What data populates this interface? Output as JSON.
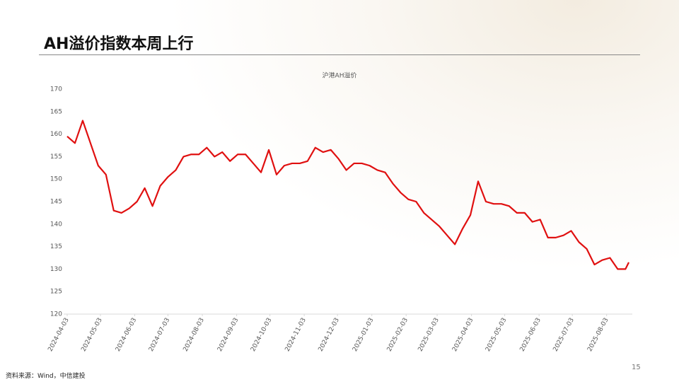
{
  "slide": {
    "title": "AH溢价指数本周上行",
    "source": "资料来源：Wind，中信建投",
    "page": "15"
  },
  "chart_data": {
    "type": "line",
    "title": "沪港AH溢价",
    "x": [
      "2024-04-03",
      "2024-04-10",
      "2024-04-17",
      "2024-04-24",
      "2024-05-01",
      "2024-05-08",
      "2024-05-15",
      "2024-05-22",
      "2024-05-29",
      "2024-06-05",
      "2024-06-12",
      "2024-06-19",
      "2024-06-26",
      "2024-07-03",
      "2024-07-10",
      "2024-07-17",
      "2024-07-24",
      "2024-07-31",
      "2024-08-07",
      "2024-08-14",
      "2024-08-21",
      "2024-08-28",
      "2024-09-04",
      "2024-09-11",
      "2024-09-18",
      "2024-09-25",
      "2024-10-02",
      "2024-10-09",
      "2024-10-16",
      "2024-10-23",
      "2024-10-30",
      "2024-11-06",
      "2024-11-13",
      "2024-11-20",
      "2024-11-27",
      "2024-12-04",
      "2024-12-11",
      "2024-12-18",
      "2024-12-25",
      "2025-01-01",
      "2025-01-08",
      "2025-01-15",
      "2025-01-22",
      "2025-01-29",
      "2025-02-05",
      "2025-02-12",
      "2025-02-19",
      "2025-02-26",
      "2025-03-05",
      "2025-03-12",
      "2025-03-19",
      "2025-03-26",
      "2025-04-02",
      "2025-04-09",
      "2025-04-16",
      "2025-04-23",
      "2025-04-30",
      "2025-05-07",
      "2025-05-14",
      "2025-05-21",
      "2025-05-28",
      "2025-06-04",
      "2025-06-11",
      "2025-06-18",
      "2025-06-25",
      "2025-07-02",
      "2025-07-09",
      "2025-07-16",
      "2025-07-23",
      "2025-07-30",
      "2025-08-06",
      "2025-08-13",
      "2025-08-20",
      "2025-08-23"
    ],
    "series": [
      {
        "name": "沪港AH溢价",
        "color": "#e01010",
        "values": [
          159.5,
          158,
          163,
          158,
          153,
          151,
          143,
          142.5,
          143.5,
          145,
          148,
          144,
          148.5,
          150.5,
          152,
          155,
          155.5,
          155.5,
          157,
          155,
          156,
          154,
          155.5,
          155.5,
          153.5,
          151.5,
          156.5,
          151,
          153,
          153.5,
          153.5,
          154,
          157,
          156,
          156.5,
          154.5,
          152,
          153.5,
          153.5,
          153,
          152,
          151.5,
          149,
          147,
          145.5,
          145,
          142.5,
          141,
          139.5,
          137.5,
          135.5,
          139,
          142,
          149.5,
          145,
          144.5,
          144.5,
          144,
          142.5,
          142.5,
          140.5,
          141,
          137,
          137,
          137.5,
          138.5,
          136,
          134.5,
          131,
          132,
          132.5,
          130,
          130,
          131.5
        ]
      }
    ],
    "xlim": [
      "2024-04-03",
      "2025-08-23"
    ],
    "xticks": [
      "2024-04-03",
      "2024-05-03",
      "2024-06-03",
      "2024-07-03",
      "2024-08-03",
      "2024-09-03",
      "2024-10-03",
      "2024-11-03",
      "2024-12-03",
      "2025-01-03",
      "2025-02-03",
      "2025-03-03",
      "2025-04-03",
      "2025-05-03",
      "2025-06-03",
      "2025-07-03",
      "2025-08-03"
    ],
    "ylim": [
      120,
      170
    ],
    "yticks": [
      120,
      125,
      130,
      135,
      140,
      145,
      150,
      155,
      160,
      165,
      170
    ],
    "grid": false
  }
}
